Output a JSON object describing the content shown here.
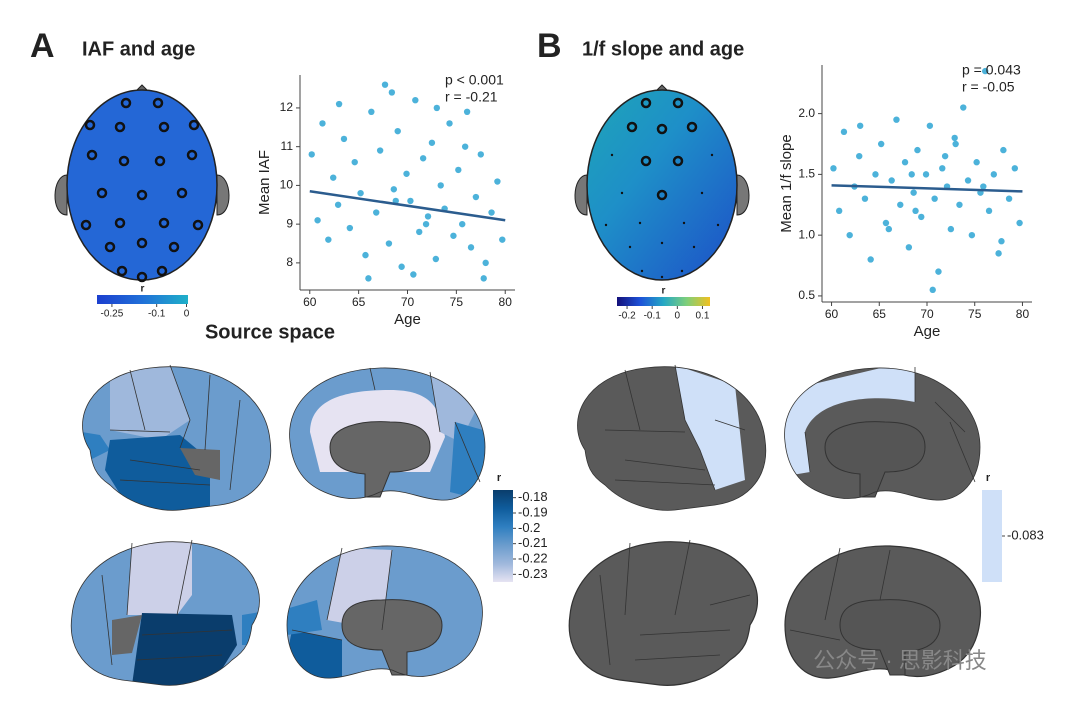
{
  "panel_a": {
    "letter": "A",
    "title": "IAF and age"
  },
  "panel_b": {
    "letter": "B",
    "title": "1/f slope and age"
  },
  "source_title": "Source space",
  "watermark": "公众号 · 思影科技",
  "chart_data": [
    {
      "type": "scatter",
      "xlabel": "Age",
      "ylabel": "Mean IAF",
      "annotations": [
        "p < 0.001",
        "r = -0.21"
      ],
      "color": "#1f9fd1",
      "line_color": "#2b5c8e",
      "xlim": [
        59,
        81
      ],
      "ylim": [
        7.3,
        12.85
      ],
      "xticks": [
        60,
        65,
        70,
        75,
        80
      ],
      "yticks": [
        8,
        9,
        10,
        11,
        12
      ],
      "x": [
        60.2,
        60.8,
        61.3,
        61.9,
        62.4,
        62.9,
        63.5,
        64.1,
        64.6,
        65.2,
        65.7,
        66.3,
        66.8,
        67.2,
        67.7,
        68.1,
        68.6,
        69.0,
        69.4,
        69.9,
        70.3,
        70.8,
        71.2,
        71.6,
        72.1,
        72.5,
        72.9,
        73.4,
        73.8,
        74.3,
        74.7,
        75.2,
        75.6,
        76.1,
        76.5,
        77.0,
        77.5,
        78.0,
        78.6,
        79.2,
        79.7,
        63.0,
        66.0,
        68.4,
        70.6,
        73.0,
        75.9,
        77.8,
        68.8,
        71.9
      ],
      "y": [
        10.8,
        9.1,
        11.6,
        8.6,
        10.2,
        9.5,
        11.2,
        8.9,
        10.6,
        9.8,
        8.2,
        11.9,
        9.3,
        10.9,
        12.6,
        8.5,
        9.9,
        11.4,
        7.9,
        10.3,
        9.6,
        12.2,
        8.8,
        10.7,
        9.2,
        11.1,
        8.1,
        10.0,
        9.4,
        11.6,
        8.7,
        10.4,
        9.0,
        11.9,
        8.4,
        9.7,
        10.8,
        8.0,
        9.3,
        10.1,
        8.6,
        12.1,
        7.6,
        12.4,
        7.7,
        12.0,
        11.0,
        7.6,
        9.6,
        9.0
      ],
      "fit": {
        "x": [
          60,
          80
        ],
        "y": [
          9.85,
          9.1
        ]
      }
    },
    {
      "type": "scatter",
      "xlabel": "Age",
      "ylabel": "Mean 1/f slope",
      "annotations": [
        "p = 0.043",
        "r = -0.05"
      ],
      "color": "#1f9fd1",
      "line_color": "#2b5c8e",
      "xlim": [
        59,
        81
      ],
      "ylim": [
        0.45,
        2.4
      ],
      "xticks": [
        60,
        65,
        70,
        75,
        80
      ],
      "yticks": [
        0.5,
        {
          "value": 1,
          "label": "1.0"
        },
        1.5,
        {
          "value": 2,
          "label": "2.0"
        }
      ],
      "x": [
        60.2,
        60.8,
        61.3,
        61.9,
        62.4,
        62.9,
        63.5,
        64.1,
        64.6,
        65.2,
        65.7,
        66.3,
        66.8,
        67.2,
        67.7,
        68.1,
        68.6,
        69.0,
        69.4,
        69.9,
        70.3,
        70.8,
        71.2,
        71.6,
        72.1,
        72.5,
        72.9,
        73.4,
        73.8,
        74.3,
        74.7,
        75.2,
        75.6,
        76.1,
        76.5,
        77.0,
        77.5,
        78.0,
        78.6,
        79.2,
        79.7,
        63.0,
        66.0,
        68.4,
        70.6,
        73.0,
        75.9,
        77.8,
        68.8,
        71.9
      ],
      "y": [
        1.55,
        1.2,
        1.85,
        1.0,
        1.4,
        1.65,
        1.3,
        0.8,
        1.5,
        1.75,
        1.1,
        1.45,
        1.95,
        1.25,
        1.6,
        0.9,
        1.35,
        1.7,
        1.15,
        1.5,
        1.9,
        1.3,
        0.7,
        1.55,
        1.4,
        1.05,
        1.8,
        1.25,
        2.05,
        1.45,
        1.0,
        1.6,
        1.35,
        2.35,
        1.2,
        1.5,
        0.85,
        1.7,
        1.3,
        1.55,
        1.1,
        1.9,
        1.05,
        1.5,
        0.55,
        1.75,
        1.4,
        0.95,
        1.2,
        1.65
      ],
      "fit": {
        "x": [
          60,
          80
        ],
        "y": [
          1.41,
          1.36
        ]
      }
    }
  ],
  "colorbars": [
    {
      "label": "r",
      "orientation": "horizontal",
      "lim": [
        -0.3,
        0.005
      ],
      "ticks": [
        -0.25,
        -0.1,
        0
      ],
      "colors": [
        "#1c3fcf",
        "#2070d8",
        "#1fb0c9"
      ]
    },
    {
      "label": "r",
      "orientation": "horizontal",
      "lim": [
        -0.24,
        0.13
      ],
      "ticks": [
        -0.2,
        -0.1,
        0,
        0.1
      ],
      "colors": [
        "#14107a",
        "#1d52d8",
        "#25a8c4",
        "#7fcf7a",
        "#f0c020"
      ]
    },
    {
      "label": "r",
      "orientation": "vertical",
      "lim": [
        -0.235,
        -0.175
      ],
      "ticks": [
        -0.18,
        -0.19,
        -0.2,
        -0.21,
        -0.22,
        -0.23
      ],
      "colors": [
        "#e6e3f2",
        "#9fb8dc",
        "#6b9ccd",
        "#2f7fc0",
        "#0f5c9c",
        "#0a3d6c"
      ]
    },
    {
      "label": "r",
      "orientation": "vertical",
      "lim": [
        -0.09,
        -0.076
      ],
      "ticks": [
        -0.083
      ],
      "colors": [
        "#cfe0f8",
        "#cfe0f8"
      ]
    }
  ]
}
